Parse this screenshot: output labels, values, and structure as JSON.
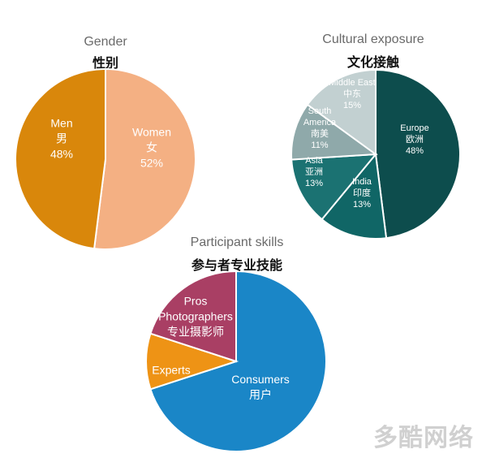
{
  "chart_data": [
    {
      "type": "pie",
      "title": "Gender",
      "subtitle": "性别",
      "slices": [
        {
          "label": "Women",
          "label_cn": "女",
          "value": 52,
          "value_label": "52%",
          "color": "#f4b083",
          "text_color": "#ffffff"
        },
        {
          "label": "Men",
          "label_cn": "男",
          "value": 48,
          "value_label": "48%",
          "color": "#d9870b",
          "text_color": "#ffffff"
        }
      ]
    },
    {
      "type": "pie",
      "title": "Cultural exposure",
      "subtitle": "文化接触",
      "slices": [
        {
          "label": "Europe",
          "label_cn": "欧洲",
          "value": 48,
          "value_label": "48%",
          "color": "#0d4d4d",
          "text_color": "#ffffff"
        },
        {
          "label": "India",
          "label_cn": "印度",
          "value": 13,
          "value_label": "13%",
          "color": "#106666",
          "text_color": "#ffffff"
        },
        {
          "label": "Asia",
          "label_cn": "亚洲",
          "value": 13,
          "value_label": "13%",
          "color": "#1b7272",
          "text_color": "#ffffff"
        },
        {
          "label": "South America",
          "label_cn": "南美",
          "value": 11,
          "value_label": "11%",
          "color": "#8fa9aa",
          "text_color": "#ffffff"
        },
        {
          "label": "Middle East",
          "label_cn": "中东",
          "value": 15,
          "value_label": "15%",
          "color": "#c2d0d1",
          "text_color": "#ffffff"
        }
      ]
    },
    {
      "type": "pie",
      "title": "Participant skills",
      "subtitle": "参与者专业技能",
      "slices": [
        {
          "label": "Consumers",
          "label_cn": "用户",
          "value": 70,
          "value_label": "",
          "color": "#1a86c7",
          "text_color": "#ffffff"
        },
        {
          "label": "Experts",
          "label_cn": "",
          "value": 10,
          "value_label": "",
          "color": "#ee9315",
          "text_color": "#ffffff"
        },
        {
          "label": "Pros Photographers",
          "label_cn": "专业摄影师",
          "value": 20,
          "value_label": "",
          "color": "#a93f64",
          "text_color": "#ffffff"
        }
      ]
    }
  ],
  "watermark": "多酷网络"
}
